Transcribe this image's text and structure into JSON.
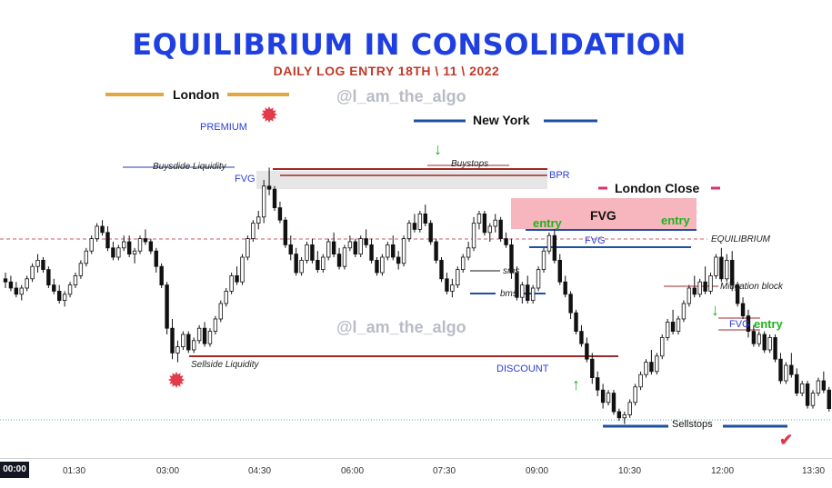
{
  "title": "EQUILIBRIUM IN CONSOLIDATION",
  "subtitle": "DAILY LOG ENTRY 18TH \\ 11 \\ 2022",
  "watermark": "@l_am_the_algo",
  "sessions": {
    "london": "London",
    "new_york": "New York",
    "london_close": "London Close"
  },
  "labels": {
    "premium": "PREMIUM",
    "discount": "DISCOUNT",
    "buyside": "Buysdide Liquidity",
    "sellside": "Sellside Liquidity",
    "fvg": "FVG",
    "bpr": "BPR",
    "buystops": "Buystops",
    "sms": "sms",
    "bms": "bms",
    "equilibrium": "EQUILIBRIUM",
    "mitigation": "Mitigation block",
    "entry": "entry",
    "sellstops": "Sellstops"
  },
  "colors": {
    "title": "#1f3fe0",
    "subtitle": "#c0392b",
    "bull": "#111111",
    "bear": "#111111",
    "london": "#e0a840",
    "new_york": "#1f4fa0",
    "london_close": "#e0306a",
    "liquidity": "#a02828",
    "fvg_zone": "#f7b6bd",
    "annotation": "#1f3fa0"
  },
  "chart_data": {
    "type": "candlestick",
    "title": "EQUILIBRIUM IN CONSOLIDATION",
    "x_ticks": [
      "00:00",
      "01:30",
      "03:00",
      "04:30",
      "06:00",
      "07:30",
      "09:00",
      "10:30",
      "12:00",
      "13:30"
    ],
    "y_range": [
      0,
      100
    ],
    "note": "price axis unlabeled; values are relative price levels",
    "candles": [
      [
        48,
        50,
        45,
        47
      ],
      [
        47,
        49,
        44,
        45
      ],
      [
        45,
        47,
        42,
        43
      ],
      [
        43,
        46,
        41,
        45
      ],
      [
        45,
        49,
        44,
        48
      ],
      [
        48,
        53,
        47,
        52
      ],
      [
        52,
        56,
        50,
        54
      ],
      [
        54,
        55,
        50,
        51
      ],
      [
        51,
        52,
        45,
        46
      ],
      [
        46,
        48,
        43,
        44
      ],
      [
        44,
        46,
        40,
        41
      ],
      [
        41,
        44,
        39,
        43
      ],
      [
        43,
        47,
        42,
        46
      ],
      [
        46,
        50,
        45,
        49
      ],
      [
        49,
        54,
        48,
        53
      ],
      [
        53,
        58,
        52,
        57
      ],
      [
        57,
        62,
        56,
        61
      ],
      [
        61,
        66,
        60,
        65
      ],
      [
        65,
        67,
        62,
        63
      ],
      [
        63,
        65,
        57,
        58
      ],
      [
        58,
        60,
        54,
        55
      ],
      [
        55,
        59,
        54,
        58
      ],
      [
        58,
        62,
        57,
        60
      ],
      [
        60,
        62,
        55,
        56
      ],
      [
        56,
        58,
        53,
        57
      ],
      [
        57,
        62,
        56,
        61
      ],
      [
        61,
        64,
        59,
        60
      ],
      [
        60,
        61,
        56,
        57
      ],
      [
        57,
        58,
        50,
        52
      ],
      [
        52,
        53,
        45,
        46
      ],
      [
        46,
        47,
        30,
        32
      ],
      [
        32,
        35,
        22,
        24
      ],
      [
        24,
        28,
        21,
        26
      ],
      [
        26,
        31,
        25,
        30
      ],
      [
        30,
        31,
        24,
        25
      ],
      [
        25,
        29,
        24,
        28
      ],
      [
        28,
        33,
        27,
        32
      ],
      [
        32,
        34,
        26,
        27
      ],
      [
        27,
        32,
        26,
        31
      ],
      [
        31,
        36,
        30,
        35
      ],
      [
        35,
        41,
        34,
        40
      ],
      [
        40,
        45,
        39,
        44
      ],
      [
        44,
        50,
        43,
        49
      ],
      [
        49,
        52,
        46,
        47
      ],
      [
        47,
        56,
        46,
        55
      ],
      [
        55,
        62,
        54,
        61
      ],
      [
        61,
        67,
        60,
        66
      ],
      [
        66,
        70,
        64,
        68
      ],
      [
        68,
        80,
        66,
        78
      ],
      [
        78,
        84,
        75,
        77
      ],
      [
        77,
        78,
        70,
        71
      ],
      [
        71,
        73,
        66,
        67
      ],
      [
        67,
        68,
        58,
        59
      ],
      [
        59,
        62,
        54,
        56
      ],
      [
        56,
        58,
        49,
        50
      ],
      [
        50,
        55,
        49,
        54
      ],
      [
        54,
        60,
        53,
        59
      ],
      [
        59,
        61,
        53,
        54
      ],
      [
        54,
        57,
        50,
        51
      ],
      [
        51,
        56,
        50,
        55
      ],
      [
        55,
        61,
        54,
        60
      ],
      [
        60,
        63,
        55,
        56
      ],
      [
        56,
        58,
        51,
        52
      ],
      [
        52,
        59,
        51,
        58
      ],
      [
        58,
        62,
        57,
        60
      ],
      [
        60,
        61,
        55,
        56
      ],
      [
        56,
        62,
        55,
        61
      ],
      [
        61,
        64,
        58,
        59
      ],
      [
        59,
        61,
        53,
        54
      ],
      [
        54,
        55,
        49,
        50
      ],
      [
        50,
        56,
        49,
        55
      ],
      [
        55,
        60,
        54,
        59
      ],
      [
        59,
        62,
        54,
        55
      ],
      [
        55,
        57,
        51,
        53
      ],
      [
        53,
        62,
        52,
        61
      ],
      [
        61,
        67,
        60,
        66
      ],
      [
        66,
        69,
        63,
        64
      ],
      [
        64,
        70,
        63,
        69
      ],
      [
        69,
        72,
        65,
        66
      ],
      [
        66,
        67,
        59,
        60
      ],
      [
        60,
        61,
        53,
        54
      ],
      [
        54,
        55,
        47,
        48
      ],
      [
        48,
        50,
        43,
        44
      ],
      [
        44,
        48,
        42,
        46
      ],
      [
        46,
        52,
        45,
        51
      ],
      [
        51,
        56,
        50,
        55
      ],
      [
        55,
        60,
        54,
        58
      ],
      [
        58,
        68,
        57,
        66
      ],
      [
        66,
        70,
        64,
        69
      ],
      [
        69,
        70,
        62,
        63
      ],
      [
        63,
        66,
        60,
        65
      ],
      [
        65,
        69,
        63,
        67
      ],
      [
        67,
        68,
        60,
        61
      ],
      [
        61,
        63,
        58,
        59
      ],
      [
        59,
        61,
        48,
        50
      ],
      [
        50,
        52,
        41,
        42
      ],
      [
        42,
        47,
        40,
        46
      ],
      [
        46,
        49,
        40,
        41
      ],
      [
        41,
        46,
        40,
        45
      ],
      [
        45,
        52,
        44,
        51
      ],
      [
        51,
        58,
        50,
        57
      ],
      [
        57,
        63,
        56,
        62
      ],
      [
        62,
        64,
        53,
        54
      ],
      [
        54,
        56,
        46,
        47
      ],
      [
        47,
        49,
        42,
        43
      ],
      [
        43,
        44,
        35,
        37
      ],
      [
        37,
        38,
        30,
        31
      ],
      [
        31,
        33,
        26,
        27
      ],
      [
        27,
        29,
        21,
        22
      ],
      [
        22,
        24,
        14,
        16
      ],
      [
        16,
        18,
        10,
        12
      ],
      [
        12,
        14,
        6,
        8
      ],
      [
        8,
        12,
        7,
        11
      ],
      [
        11,
        12,
        4,
        5
      ],
      [
        5,
        6,
        2,
        3
      ],
      [
        3,
        5,
        1,
        4
      ],
      [
        4,
        9,
        3,
        8
      ],
      [
        8,
        14,
        7,
        13
      ],
      [
        13,
        18,
        12,
        17
      ],
      [
        17,
        22,
        16,
        21
      ],
      [
        21,
        25,
        17,
        18
      ],
      [
        18,
        24,
        17,
        23
      ],
      [
        23,
        30,
        22,
        29
      ],
      [
        29,
        35,
        28,
        34
      ],
      [
        34,
        38,
        30,
        31
      ],
      [
        31,
        36,
        30,
        35
      ],
      [
        35,
        41,
        34,
        40
      ],
      [
        40,
        46,
        39,
        45
      ],
      [
        45,
        49,
        42,
        43
      ],
      [
        43,
        48,
        42,
        47
      ],
      [
        47,
        52,
        43,
        44
      ],
      [
        44,
        50,
        43,
        49
      ],
      [
        49,
        56,
        48,
        55
      ],
      [
        55,
        58,
        47,
        48
      ],
      [
        48,
        56,
        47,
        54
      ],
      [
        54,
        57,
        44,
        46
      ],
      [
        46,
        47,
        39,
        40
      ],
      [
        40,
        42,
        35,
        36
      ],
      [
        36,
        38,
        29,
        31
      ],
      [
        31,
        33,
        26,
        27
      ],
      [
        27,
        31,
        26,
        30
      ],
      [
        30,
        31,
        24,
        25
      ],
      [
        25,
        30,
        24,
        29
      ],
      [
        29,
        30,
        21,
        22
      ],
      [
        22,
        24,
        14,
        15
      ],
      [
        15,
        21,
        14,
        20
      ],
      [
        20,
        24,
        16,
        17
      ],
      [
        17,
        19,
        10,
        11
      ],
      [
        11,
        15,
        10,
        14
      ],
      [
        14,
        15,
        6,
        7
      ],
      [
        7,
        12,
        6,
        11
      ],
      [
        11,
        16,
        10,
        15
      ],
      [
        15,
        18,
        11,
        12
      ],
      [
        12,
        13,
        5,
        6
      ],
      [
        6,
        9,
        2,
        3
      ],
      [
        3,
        5,
        0,
        2
      ],
      [
        2,
        8,
        1,
        7
      ],
      [
        7,
        12,
        6,
        11
      ],
      [
        11,
        16,
        10,
        14
      ],
      [
        14,
        16,
        8,
        10
      ],
      [
        10,
        13,
        6,
        8
      ],
      [
        8,
        10,
        3,
        4
      ]
    ],
    "levels": {
      "equilibrium": 50,
      "buyside_liquidity": 72,
      "sellside_liquidity": 22,
      "sellstops": 3,
      "fvg_lower": 52,
      "mitigation_block": 41
    }
  }
}
